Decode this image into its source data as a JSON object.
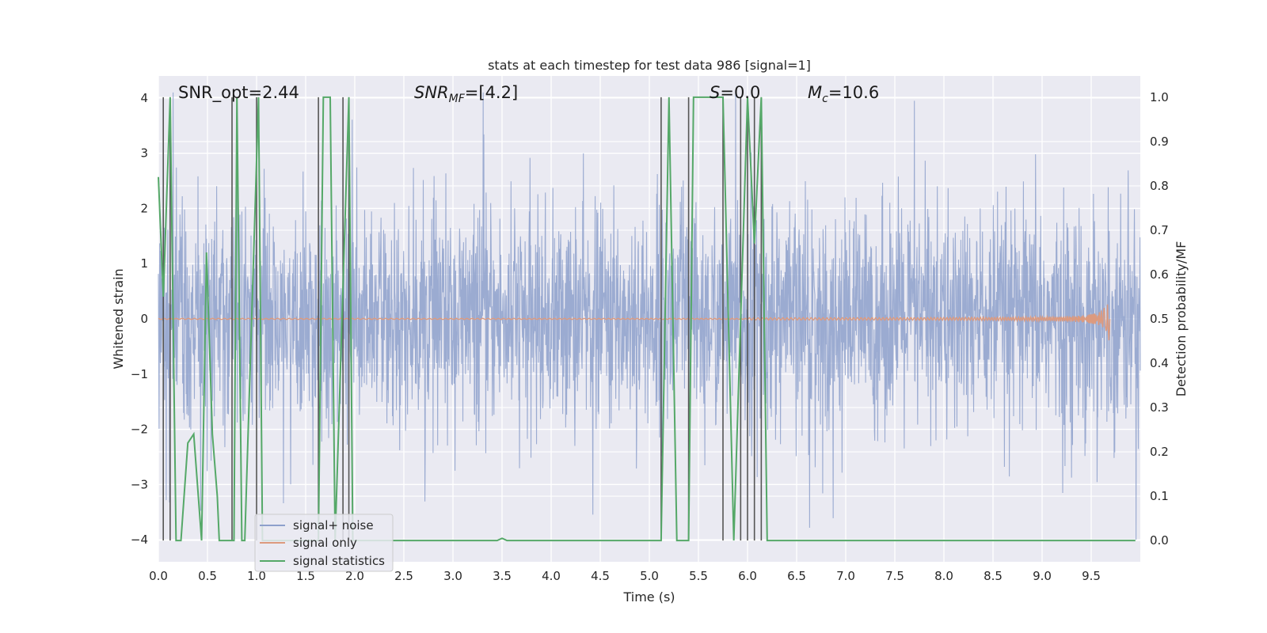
{
  "chart_data": {
    "type": "line",
    "title": "stats at each timestep for test data 986 [signal=1]",
    "xlabel": "Time (s)",
    "ylabel": "Whitened strain",
    "y2label": "Detection probability/MF",
    "xlim": [
      0.0,
      10.0
    ],
    "ylim": [
      -4.4,
      4.4
    ],
    "y2lim": [
      -0.048,
      1.048
    ],
    "x_ticks": [
      0.0,
      0.5,
      1.0,
      1.5,
      2.0,
      2.5,
      3.0,
      3.5,
      4.0,
      4.5,
      5.0,
      5.5,
      6.0,
      6.5,
      7.0,
      7.5,
      8.0,
      8.5,
      9.0,
      9.5
    ],
    "x_tick_labels": [
      "0.0",
      "0.5",
      "1.0",
      "1.5",
      "2.0",
      "2.5",
      "3.0",
      "3.5",
      "4.0",
      "4.5",
      "5.0",
      "5.5",
      "6.0",
      "6.5",
      "7.0",
      "7.5",
      "8.0",
      "8.5",
      "9.0",
      "9.5"
    ],
    "y_ticks": [
      -4,
      -3,
      -2,
      -1,
      0,
      1,
      2,
      3,
      4
    ],
    "y_tick_labels": [
      "−4",
      "−3",
      "−2",
      "−1",
      "0",
      "1",
      "2",
      "3",
      "4"
    ],
    "y2_ticks": [
      0.0,
      0.1,
      0.2,
      0.3,
      0.4,
      0.5,
      0.6,
      0.7,
      0.8,
      0.9,
      1.0
    ],
    "y2_tick_labels": [
      "0.0",
      "0.1",
      "0.2",
      "0.3",
      "0.4",
      "0.5",
      "0.6",
      "0.7",
      "0.8",
      "0.9",
      "1.0"
    ],
    "grid": true,
    "legend_position": "lower-left",
    "annotations": {
      "snr_opt": "SNR_opt=2.44",
      "snr_mf_sym": "SNR",
      "snr_mf_sub": "MF",
      "snr_mf_val": "=[4.2]",
      "s_sym": "S",
      "s_val": "=0.0",
      "mc_sym": "M",
      "mc_sub": "c",
      "mc_val": "=10.6"
    },
    "series": [
      {
        "name": "signal+ noise",
        "color": "#8da0cb",
        "description_kind": "noise",
        "envelope": {
          "typical_amplitude": 1.6,
          "max_amplitude": 4.1,
          "min_value": -4.0
        }
      },
      {
        "name": "signal only",
        "color": "#dd9a7e",
        "description_kind": "chirp",
        "chirp": {
          "start": 6.0,
          "peak_time": 9.68,
          "peak_amplitude": 0.45
        }
      },
      {
        "name": "signal statistics",
        "color": "#55a868",
        "axis": "right",
        "x": [
          0.0,
          0.05,
          0.12,
          0.18,
          0.23,
          0.3,
          0.36,
          0.44,
          0.49,
          0.55,
          0.6,
          0.62,
          0.77,
          0.8,
          0.85,
          0.88,
          1.02,
          1.06,
          1.1,
          1.63,
          1.68,
          1.75,
          1.8,
          1.94,
          1.98,
          2.05,
          2.5,
          3.0,
          3.45,
          3.5,
          3.55,
          4.0,
          4.5,
          5.0,
          5.12,
          5.2,
          5.28,
          5.4,
          5.45,
          5.75,
          5.86,
          6.0,
          6.07,
          6.14,
          6.2,
          6.5,
          7.0,
          8.0,
          9.0,
          9.95
        ],
        "values": [
          0.82,
          0.55,
          1.0,
          0.0,
          0.0,
          0.22,
          0.24,
          0.0,
          0.65,
          0.24,
          0.1,
          0.0,
          0.0,
          1.0,
          0.0,
          0.0,
          1.0,
          0.0,
          0.0,
          0.0,
          1.0,
          1.0,
          0.0,
          1.0,
          0.0,
          0.0,
          0.0,
          0.0,
          0.0,
          0.005,
          0.0,
          0.0,
          0.0,
          0.0,
          0.0,
          1.0,
          0.0,
          0.0,
          1.0,
          1.0,
          0.0,
          1.0,
          0.67,
          1.0,
          0.0,
          0.0,
          0.0,
          0.0,
          0.0,
          0.0
        ]
      }
    ],
    "vertical_markers": {
      "color": "#555555",
      "x": [
        0.05,
        0.12,
        0.75,
        1.0,
        1.63,
        1.88,
        1.94,
        5.12,
        5.4,
        5.75,
        5.93,
        6.0,
        6.07,
        6.14
      ]
    }
  }
}
